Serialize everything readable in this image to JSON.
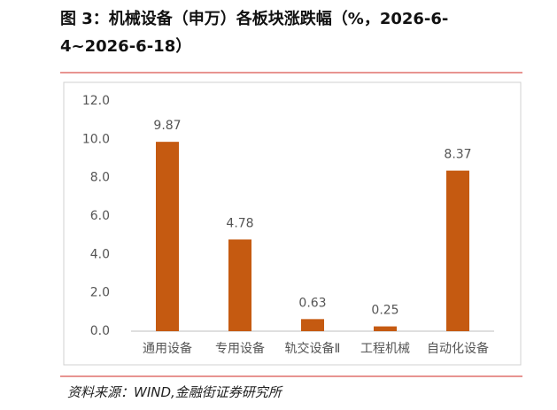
{
  "chart_data": {
    "type": "bar",
    "title": "图 3：机械设备（申万）各板块涨跌幅（%，2026-6-4~2026-6-18）",
    "categories": [
      "通用设备",
      "专用设备",
      "轨交设备Ⅱ",
      "工程机械",
      "自动化设备"
    ],
    "values": [
      9.87,
      4.78,
      0.63,
      0.25,
      8.37
    ],
    "color": "#c55a11",
    "ylim": [
      0,
      12
    ],
    "yticks": [
      {
        "value": 0,
        "label": "0.0"
      },
      {
        "value": 2,
        "label": "2.0"
      },
      {
        "value": 4,
        "label": "4.0"
      },
      {
        "value": 6,
        "label": "6.0"
      },
      {
        "value": 8,
        "label": "8.0"
      },
      {
        "value": 10,
        "label": "10.0"
      },
      {
        "value": 12,
        "label": "12.0"
      }
    ],
    "grid": false
  },
  "source": "资料来源：WIND,金融街证券研究所"
}
